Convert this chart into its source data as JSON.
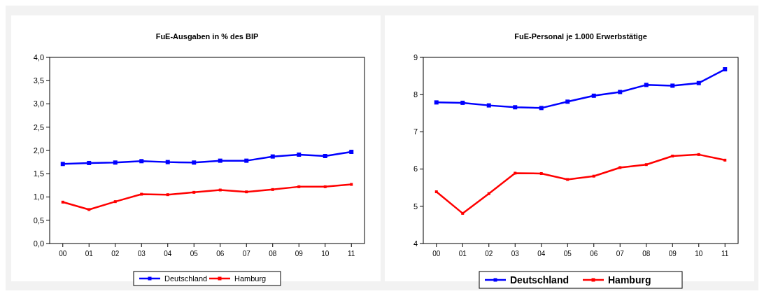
{
  "chart_data": [
    {
      "type": "line",
      "title": "FuE-Ausgaben in % des BIP",
      "categories": [
        "00",
        "01",
        "02",
        "03",
        "04",
        "05",
        "06",
        "07",
        "08",
        "09",
        "10",
        "11"
      ],
      "ylim": [
        0,
        4
      ],
      "yticks": [
        {
          "value": 0,
          "label": "0,0"
        },
        {
          "value": 0.5,
          "label": "0,5"
        },
        {
          "value": 1,
          "label": "1,0"
        },
        {
          "value": 1.5,
          "label": "1,5"
        },
        {
          "value": 2,
          "label": "2,0"
        },
        {
          "value": 2.5,
          "label": "2,5"
        },
        {
          "value": 3,
          "label": "3,0"
        },
        {
          "value": 3.5,
          "label": "3,5"
        },
        {
          "value": 4,
          "label": "4,0"
        }
      ],
      "grid": false,
      "legend": "bottom",
      "marker": "square",
      "line_style": "solid",
      "series": [
        {
          "name": "Deutschland",
          "color": "#0000ff",
          "values": [
            1.71,
            1.73,
            1.74,
            1.77,
            1.75,
            1.74,
            1.78,
            1.78,
            1.87,
            1.91,
            1.88,
            1.97
          ]
        },
        {
          "name": "Hamburg",
          "color": "#ff0000",
          "values": [
            0.89,
            0.73,
            0.9,
            1.06,
            1.05,
            1.1,
            1.15,
            1.11,
            1.16,
            1.22,
            1.22,
            1.27
          ]
        }
      ]
    },
    {
      "type": "line",
      "title": "FuE-Personal je 1.000 Erwerbstätige",
      "categories": [
        "00",
        "01",
        "02",
        "03",
        "04",
        "05",
        "06",
        "07",
        "08",
        "09",
        "10",
        "11"
      ],
      "ylim": [
        4,
        9
      ],
      "yticks": [
        4,
        5,
        6,
        7,
        8,
        9
      ],
      "grid": false,
      "legend": "bottom",
      "marker": "square",
      "line_style": "solid",
      "series": [
        {
          "name": "Deutschland",
          "color": "#0000ff",
          "values": [
            7.79,
            7.78,
            7.71,
            7.66,
            7.64,
            7.81,
            7.97,
            8.07,
            8.26,
            8.24,
            8.31,
            8.68
          ]
        },
        {
          "name": "Hamburg",
          "color": "#ff0000",
          "values": [
            5.39,
            4.81,
            5.34,
            5.89,
            5.88,
            5.72,
            5.81,
            6.04,
            6.12,
            6.35,
            6.39,
            6.24
          ]
        }
      ]
    }
  ]
}
